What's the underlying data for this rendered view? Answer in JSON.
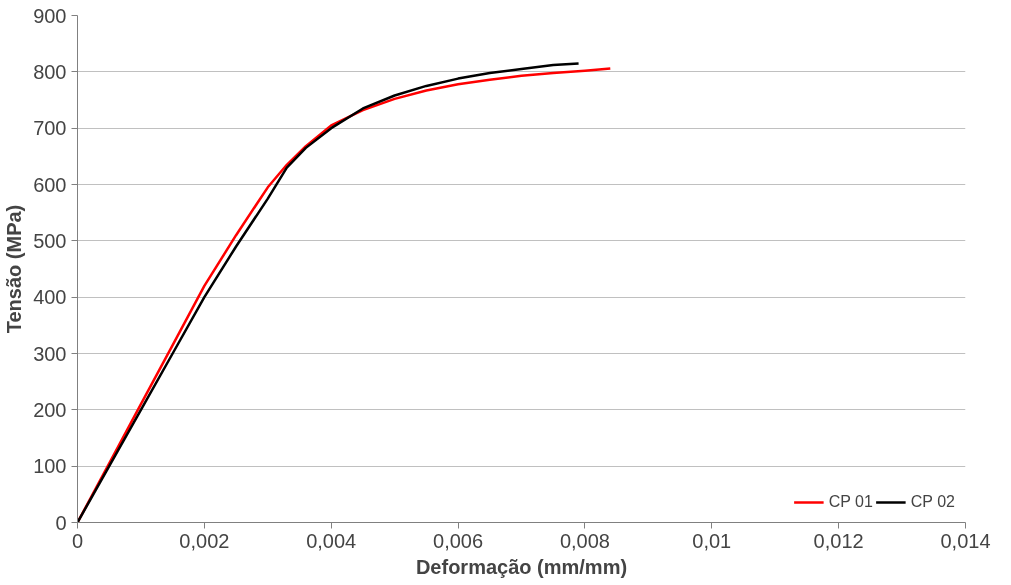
{
  "chart_data": {
    "type": "line",
    "xlabel": "Deformação (mm/mm)",
    "ylabel": "Tensão (MPa)",
    "xlim": [
      0,
      0.014
    ],
    "ylim": [
      0,
      900
    ],
    "xticks": [
      0,
      {
        "value": 0.002,
        "label": "0,002"
      },
      {
        "value": 0.004,
        "label": "0,004"
      },
      {
        "value": 0.006,
        "label": "0,006"
      },
      {
        "value": 0.008,
        "label": "0,008"
      },
      {
        "value": 0.01,
        "label": "0,01"
      },
      {
        "value": 0.012,
        "label": "0,012"
      },
      {
        "value": 0.014,
        "label": "0,014"
      }
    ],
    "yticks": [
      0,
      100,
      200,
      300,
      400,
      500,
      600,
      700,
      800,
      900
    ],
    "grid": "y",
    "legend": "bottom right",
    "marker": "none",
    "line_style": "solid",
    "series": [
      {
        "name": "CP 01",
        "color": "#ff0000",
        "x": [
          0,
          0.0005,
          0.001,
          0.0015,
          0.002,
          0.0025,
          0.003,
          0.0033,
          0.0036,
          0.004,
          0.0045,
          0.005,
          0.0055,
          0.006,
          0.0065,
          0.007,
          0.0075,
          0.008,
          0.0084
        ],
        "values": [
          0,
          105,
          210,
          315,
          420,
          510,
          595,
          635,
          668,
          705,
          732,
          752,
          767,
          778,
          786,
          793,
          798,
          802,
          806
        ]
      },
      {
        "name": "CP 02",
        "color": "#000000",
        "x": [
          0,
          0.0005,
          0.001,
          0.0015,
          0.002,
          0.0025,
          0.003,
          0.0033,
          0.0036,
          0.004,
          0.0045,
          0.005,
          0.0055,
          0.006,
          0.0065,
          0.007,
          0.0075,
          0.0079
        ],
        "values": [
          0,
          100,
          200,
          300,
          400,
          490,
          575,
          630,
          665,
          700,
          735,
          758,
          775,
          788,
          798,
          805,
          812,
          815
        ]
      }
    ]
  }
}
